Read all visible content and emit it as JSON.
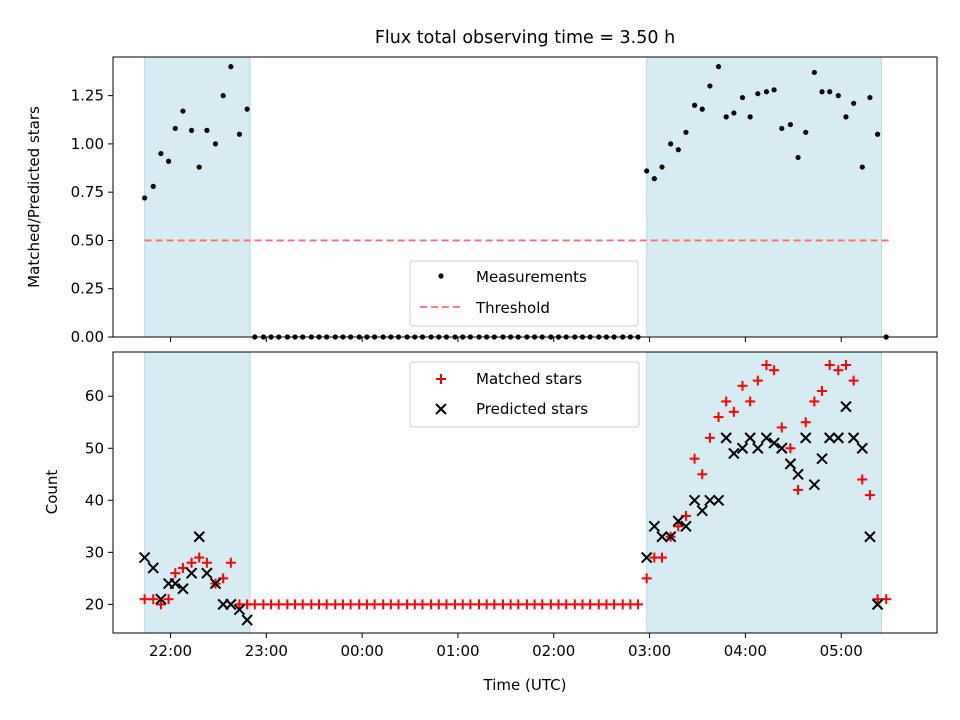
{
  "figure_title": "Flux total observing time = 3.50 h",
  "xlabel": "Time (UTC)",
  "x_ticks": [
    "22:00",
    "23:00",
    "00:00",
    "01:00",
    "02:00",
    "03:00",
    "04:00",
    "05:00"
  ],
  "colors": {
    "shade": "#add8e6",
    "measurement": "#000000",
    "threshold": "#ff6b6b",
    "matched": "#ff0000",
    "predicted": "#000000"
  },
  "chart_data": [
    {
      "type": "scatter",
      "ylabel": "Matched/Predicted stars",
      "ylim": [
        0,
        1.45
      ],
      "xlim_hours": [
        21.4,
        30.0
      ],
      "y_ticks": [
        "0.00",
        "0.25",
        "0.50",
        "0.75",
        "1.00",
        "1.25"
      ],
      "shaded_intervals_hours": [
        [
          21.73,
          22.83
        ],
        [
          26.97,
          29.42
        ]
      ],
      "threshold": 0.5,
      "threshold_range_hours": [
        21.73,
        29.5
      ],
      "legend": [
        "Measurements",
        "Threshold"
      ],
      "legend_position": "lower center",
      "series": [
        {
          "name": "Measurements",
          "x_hours": [
            21.73,
            21.82,
            21.9,
            21.98,
            22.05,
            22.13,
            22.22,
            22.3,
            22.38,
            22.47,
            22.55,
            22.63,
            22.72,
            22.8,
            22.88,
            22.97,
            23.05,
            23.13,
            23.22,
            23.3,
            23.38,
            23.47,
            23.55,
            23.63,
            23.72,
            23.8,
            23.88,
            23.97,
            24.05,
            24.13,
            24.22,
            24.3,
            24.38,
            24.47,
            24.55,
            24.63,
            24.72,
            24.8,
            24.88,
            24.97,
            25.05,
            25.13,
            25.22,
            25.3,
            25.38,
            25.47,
            25.55,
            25.63,
            25.72,
            25.8,
            25.88,
            25.97,
            26.05,
            26.13,
            26.22,
            26.3,
            26.38,
            26.47,
            26.55,
            26.63,
            26.72,
            26.8,
            26.88,
            26.97,
            27.05,
            27.13,
            27.22,
            27.3,
            27.38,
            27.47,
            27.55,
            27.63,
            27.72,
            27.8,
            27.88,
            27.97,
            28.05,
            28.13,
            28.22,
            28.3,
            28.38,
            28.47,
            28.55,
            28.63,
            28.72,
            28.8,
            28.88,
            28.97,
            29.05,
            29.13,
            29.22,
            29.3,
            29.38,
            29.47
          ],
          "y": [
            0.72,
            0.78,
            0.95,
            0.91,
            1.08,
            1.17,
            1.07,
            0.88,
            1.07,
            1.0,
            1.25,
            1.4,
            1.05,
            1.18,
            0,
            0,
            0,
            0,
            0,
            0,
            0,
            0,
            0,
            0,
            0,
            0,
            0,
            0,
            0,
            0,
            0,
            0,
            0,
            0,
            0,
            0,
            0,
            0,
            0,
            0,
            0,
            0,
            0,
            0,
            0,
            0,
            0,
            0,
            0,
            0,
            0,
            0,
            0,
            0,
            0,
            0,
            0,
            0,
            0,
            0,
            0,
            0,
            0,
            0.86,
            0.82,
            0.88,
            1.0,
            0.97,
            1.06,
            1.2,
            1.18,
            1.3,
            1.4,
            1.14,
            1.16,
            1.24,
            1.14,
            1.26,
            1.27,
            1.28,
            1.08,
            1.1,
            0.93,
            1.06,
            1.37,
            1.27,
            1.27,
            1.25,
            1.14,
            1.21,
            0.88,
            1.24,
            1.05,
            0
          ]
        }
      ]
    },
    {
      "type": "scatter",
      "ylabel": "Count",
      "ylim": [
        14.5,
        68.5
      ],
      "xlim_hours": [
        21.4,
        30.0
      ],
      "y_ticks": [
        "20",
        "30",
        "40",
        "50",
        "60"
      ],
      "shaded_intervals_hours": [
        [
          21.73,
          22.83
        ],
        [
          26.97,
          29.42
        ]
      ],
      "legend": [
        "Matched stars",
        "Predicted stars"
      ],
      "legend_position": "upper center",
      "series": [
        {
          "name": "Matched stars",
          "marker": "+",
          "x_hours": [
            21.73,
            21.82,
            21.9,
            21.98,
            22.05,
            22.13,
            22.22,
            22.3,
            22.38,
            22.47,
            22.55,
            22.63,
            22.72,
            22.8,
            22.88,
            22.97,
            23.05,
            23.13,
            23.22,
            23.3,
            23.38,
            23.47,
            23.55,
            23.63,
            23.72,
            23.8,
            23.88,
            23.97,
            24.05,
            24.13,
            24.22,
            24.3,
            24.38,
            24.47,
            24.55,
            24.63,
            24.72,
            24.8,
            24.88,
            24.97,
            25.05,
            25.13,
            25.22,
            25.3,
            25.38,
            25.47,
            25.55,
            25.63,
            25.72,
            25.8,
            25.88,
            25.97,
            26.05,
            26.13,
            26.22,
            26.3,
            26.38,
            26.47,
            26.55,
            26.63,
            26.72,
            26.8,
            26.88,
            26.97,
            27.05,
            27.13,
            27.22,
            27.3,
            27.38,
            27.47,
            27.55,
            27.63,
            27.72,
            27.8,
            27.88,
            27.97,
            28.05,
            28.13,
            28.22,
            28.3,
            28.38,
            28.47,
            28.55,
            28.63,
            28.72,
            28.8,
            28.88,
            28.97,
            29.05,
            29.13,
            29.22,
            29.3,
            29.38,
            29.47
          ],
          "y": [
            21,
            21,
            20,
            21,
            26,
            27,
            28,
            29,
            28,
            24,
            25,
            28,
            20,
            20,
            20,
            20,
            20,
            20,
            20,
            20,
            20,
            20,
            20,
            20,
            20,
            20,
            20,
            20,
            20,
            20,
            20,
            20,
            20,
            20,
            20,
            20,
            20,
            20,
            20,
            20,
            20,
            20,
            20,
            20,
            20,
            20,
            20,
            20,
            20,
            20,
            20,
            20,
            20,
            20,
            20,
            20,
            20,
            20,
            20,
            20,
            20,
            20,
            20,
            25,
            29,
            29,
            33,
            35,
            37,
            48,
            45,
            52,
            56,
            59,
            57,
            62,
            59,
            63,
            66,
            65,
            54,
            50,
            42,
            55,
            59,
            61,
            66,
            65,
            66,
            63,
            44,
            41,
            21,
            21
          ]
        },
        {
          "name": "Predicted stars",
          "marker": "x",
          "x_hours": [
            21.73,
            21.82,
            21.9,
            21.98,
            22.05,
            22.13,
            22.22,
            22.3,
            22.38,
            22.47,
            22.55,
            22.63,
            22.72,
            22.8,
            26.97,
            27.05,
            27.13,
            27.22,
            27.3,
            27.38,
            27.47,
            27.55,
            27.63,
            27.72,
            27.8,
            27.88,
            27.97,
            28.05,
            28.13,
            28.22,
            28.3,
            28.38,
            28.47,
            28.55,
            28.63,
            28.72,
            28.8,
            28.88,
            28.97,
            29.05,
            29.13,
            29.22,
            29.3,
            29.38
          ],
          "y": [
            29,
            27,
            21,
            24,
            24,
            23,
            26,
            33,
            26,
            24,
            20,
            20,
            19,
            17,
            29,
            35,
            33,
            33,
            36,
            35,
            40,
            38,
            40,
            40,
            52,
            49,
            50,
            52,
            50,
            52,
            51,
            50,
            47,
            45,
            52,
            43,
            48,
            52,
            52,
            58,
            52,
            50,
            33,
            20
          ]
        }
      ]
    }
  ]
}
